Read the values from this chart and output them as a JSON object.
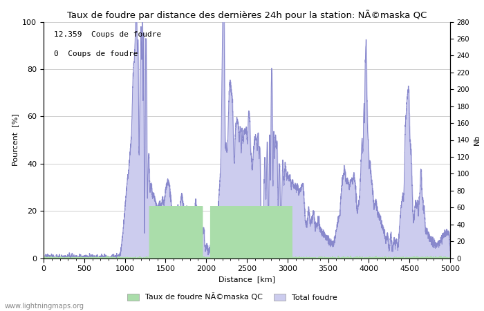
{
  "title": "Taux de foudre par distance des dernières 24h pour la station: NÃ©maska QC",
  "xlabel": "Distance  [km]",
  "ylabel_left": "Pourcent  [%]",
  "ylabel_right": "Nb",
  "annotation_line1": "12.359  Coups de foudre",
  "annotation_line2": "0  Coups de foudre",
  "xlim": [
    0,
    5000
  ],
  "ylim_left": [
    0,
    100
  ],
  "ylim_right": [
    0,
    280
  ],
  "xticks": [
    0,
    500,
    1000,
    1500,
    2000,
    2500,
    3000,
    3500,
    4000,
    4500,
    5000
  ],
  "yticks_left": [
    0,
    20,
    40,
    60,
    80,
    100
  ],
  "yticks_right": [
    0,
    20,
    40,
    60,
    80,
    100,
    120,
    140,
    160,
    180,
    200,
    220,
    240,
    260,
    280
  ],
  "line_color": "#8888cc",
  "fill_blue_color": "#ccccee",
  "fill_green_color": "#aaddaa",
  "legend_label_green": "Taux de foudre NÃ©maska QC",
  "legend_label_blue": "Total foudre",
  "watermark": "www.lightningmaps.org",
  "bg_color": "#ffffff",
  "grid_color": "#bbbbbb"
}
